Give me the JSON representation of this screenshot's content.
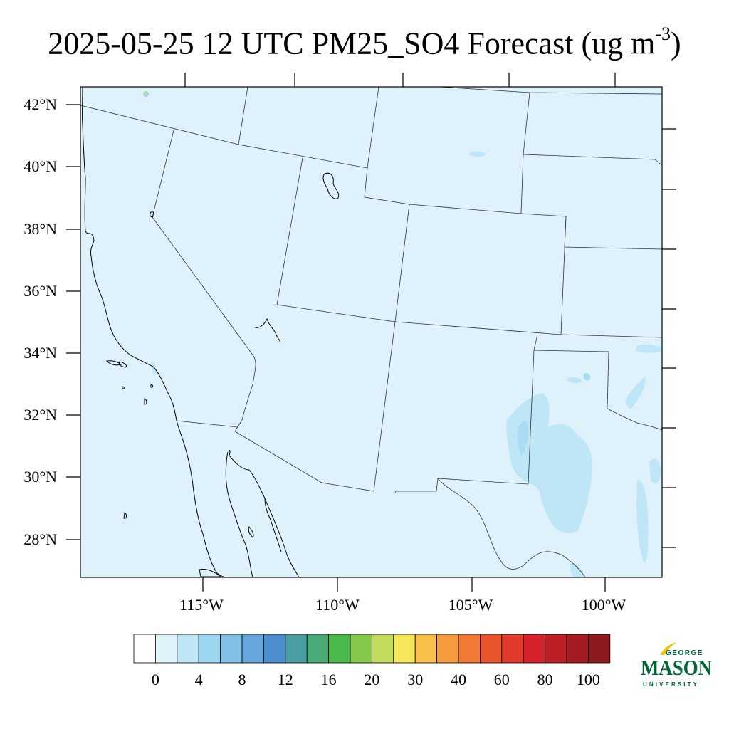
{
  "title": {
    "main": "2025-05-25 12 UTC PM25_SO4 Forecast (ug m",
    "sup": "-3",
    "close": ")"
  },
  "axes": {
    "lat_labels": [
      "42°N",
      "40°N",
      "38°N",
      "36°N",
      "34°N",
      "32°N",
      "30°N",
      "28°N"
    ],
    "lon_labels": [
      "115°W",
      "110°W",
      "105°W",
      "100°W"
    ]
  },
  "colorbar": {
    "labels": [
      "0",
      "4",
      "8",
      "12",
      "16",
      "20",
      "30",
      "40",
      "60",
      "80",
      "100"
    ],
    "colors": [
      "#ffffff",
      "#e0f3fb",
      "#bfe6f7",
      "#9dd6f3",
      "#82c0e8",
      "#67a6dc",
      "#4a8ed0",
      "#4a9ea2",
      "#4aaa78",
      "#4ab84a",
      "#86c84c",
      "#c4da5a",
      "#f5e65a",
      "#f8c04a",
      "#f49c3e",
      "#f07a32",
      "#ea552c",
      "#e23a2a",
      "#d6222a",
      "#be1e26",
      "#a41c22",
      "#8c1a1e"
    ]
  },
  "logo": {
    "top": "GEORGE",
    "main": "MASON",
    "bottom": "UNIVERSITY",
    "green": "#006633",
    "gold": "#f4c300"
  }
}
